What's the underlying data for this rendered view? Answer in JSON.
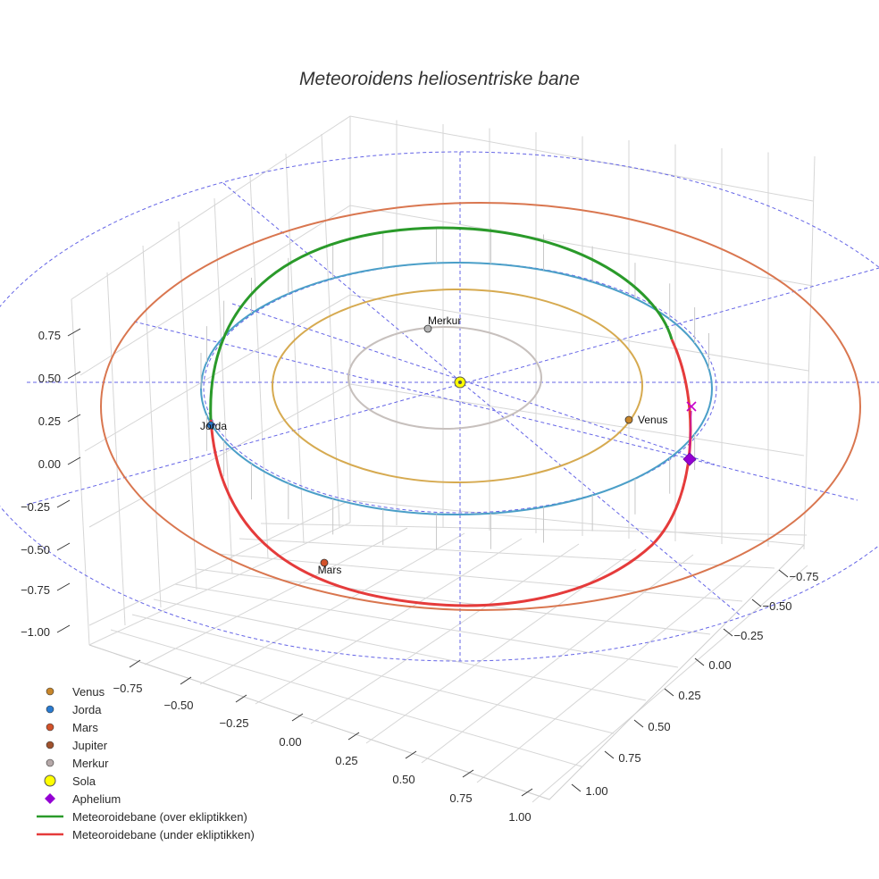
{
  "chart_data": {
    "type": "scatter",
    "title": "Meteoroidens heliosentriske bane",
    "axes": {
      "z_ticks": [
        "0.75",
        "0.50",
        "0.25",
        "0.00",
        "−0.25",
        "−0.50",
        "−0.75",
        "−1.00"
      ],
      "x_ticks": [
        "−0.75",
        "−0.50",
        "−0.25",
        "0.00",
        "0.25",
        "0.50",
        "0.75",
        "1.00"
      ],
      "y_ticks": [
        "−0.75",
        "−0.50",
        "−0.25",
        "0.00",
        "0.25",
        "0.50",
        "0.75",
        "1.00"
      ]
    },
    "planets": [
      {
        "name": "Merkur",
        "label": "Merkur",
        "color": "#b5b5b5"
      },
      {
        "name": "Venus",
        "label": "Venus",
        "color": "#c8862a"
      },
      {
        "name": "Jorda",
        "label": "Jorda",
        "color": "#2a7bd0"
      },
      {
        "name": "Mars",
        "label": "Mars",
        "color": "#d2522a"
      }
    ],
    "orbits": [
      {
        "name": "Merkur",
        "color": "#c7c0bd"
      },
      {
        "name": "Venus",
        "color": "#d6aa50"
      },
      {
        "name": "Jorda",
        "color": "#4b9fc8"
      },
      {
        "name": "Mars",
        "color": "#d9764f"
      }
    ],
    "meteoroid_segments": [
      {
        "name": "Meteoroidebane (over ekliptikken)",
        "color": "#2a9a2a"
      },
      {
        "name": "Meteoroidebane (under ekliptikken)",
        "color": "#e53b3b"
      }
    ],
    "markers": {
      "sun_name": "Sola",
      "sun_color": "#ffff00",
      "aphelium_name": "Aphelium",
      "aphelium_color": "#9400d3",
      "cross_color": "#c800c8"
    },
    "legend": {
      "placement": "bottom-left",
      "items": [
        {
          "label": "Venus",
          "kind": "dot",
          "color": "#c8862a"
        },
        {
          "label": "Jorda",
          "kind": "dot",
          "color": "#2a7bd0"
        },
        {
          "label": "Mars",
          "kind": "dot",
          "color": "#d2522a"
        },
        {
          "label": "Jupiter",
          "kind": "dot",
          "color": "#a0522d"
        },
        {
          "label": "Merkur",
          "kind": "dot",
          "color": "#b5a8a8"
        },
        {
          "label": "Sola",
          "kind": "sun",
          "color": "#ffff00"
        },
        {
          "label": "Aphelium",
          "kind": "diamond",
          "color": "#9400d3"
        },
        {
          "label": "Meteoroidebane (over ekliptikken)",
          "kind": "line",
          "color": "#2a9a2a"
        },
        {
          "label": "Meteoroidebane (under ekliptikken)",
          "kind": "line",
          "color": "#e53b3b"
        }
      ]
    }
  }
}
